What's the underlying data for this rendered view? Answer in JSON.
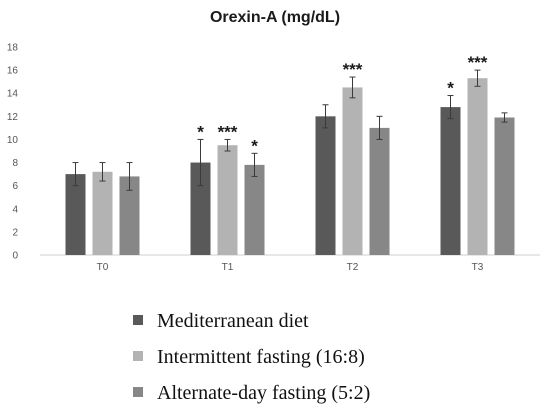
{
  "chart_data": {
    "type": "bar",
    "title": "Orexin-A (mg/dL)",
    "xlabel": "",
    "ylabel": "",
    "categories": [
      "T0",
      "T1",
      "T2",
      "T3"
    ],
    "ylim": [
      0,
      18
    ],
    "yticks": [
      "0",
      "2",
      "4",
      "6",
      "8",
      "10",
      "12",
      "14",
      "16",
      "18"
    ],
    "grid": false,
    "legend_position": "bottom",
    "series": [
      {
        "name": "Mediterranean diet",
        "color": "#595959",
        "values": [
          7.0,
          8.0,
          12.0,
          12.8
        ],
        "errors": [
          1.0,
          2.0,
          1.0,
          1.0
        ],
        "significance": [
          "",
          "*",
          "",
          "*"
        ]
      },
      {
        "name": "Intermittent fasting (16:8)",
        "color": "#b3b3b3",
        "values": [
          7.2,
          9.5,
          14.5,
          15.3
        ],
        "errors": [
          0.8,
          0.5,
          0.9,
          0.7
        ],
        "significance": [
          "",
          "***",
          "***",
          "***"
        ]
      },
      {
        "name": "Alternate-day fasting (5:2)",
        "color": "#878787",
        "values": [
          6.8,
          7.8,
          11.0,
          11.9
        ],
        "errors": [
          1.2,
          1.0,
          1.0,
          0.4
        ],
        "significance": [
          "",
          "*",
          "",
          ""
        ]
      }
    ]
  }
}
